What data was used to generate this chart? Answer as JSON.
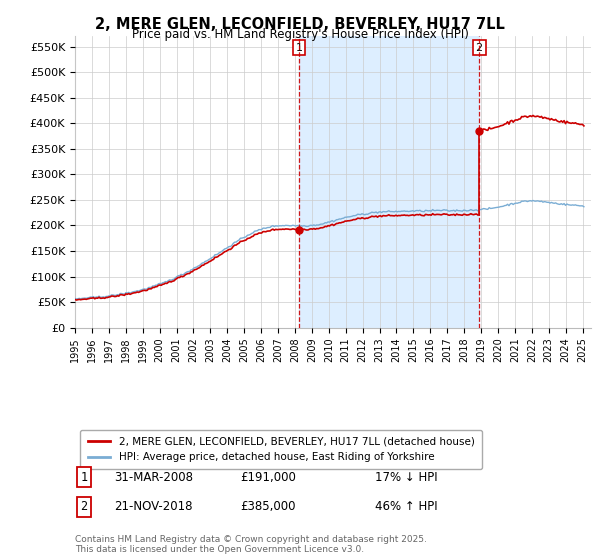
{
  "title": "2, MERE GLEN, LECONFIELD, BEVERLEY, HU17 7LL",
  "subtitle": "Price paid vs. HM Land Registry's House Price Index (HPI)",
  "ylabel_ticks": [
    "£0",
    "£50K",
    "£100K",
    "£150K",
    "£200K",
    "£250K",
    "£300K",
    "£350K",
    "£400K",
    "£450K",
    "£500K",
    "£550K"
  ],
  "ytick_values": [
    0,
    50000,
    100000,
    150000,
    200000,
    250000,
    300000,
    350000,
    400000,
    450000,
    500000,
    550000
  ],
  "ylim": [
    0,
    570000
  ],
  "t1_year": 2008.25,
  "t2_year": 2018.89,
  "t1_price": 191000,
  "t2_price": 385000,
  "hpi_line_color": "#7aadd4",
  "property_line_color": "#cc0000",
  "vline_color": "#cc0000",
  "shade_color": "#ddeeff",
  "background_color": "#ffffff",
  "grid_color": "#cccccc",
  "legend_entry1": "2, MERE GLEN, LECONFIELD, BEVERLEY, HU17 7LL (detached house)",
  "legend_entry2": "HPI: Average price, detached house, East Riding of Yorkshire",
  "note1_box_label": "1",
  "note2_box_label": "2",
  "note1_date": "31-MAR-2008",
  "note1_price": "£191,000",
  "note1_hpi": "17% ↓ HPI",
  "note2_date": "21-NOV-2018",
  "note2_price": "£385,000",
  "note2_hpi": "46% ↑ HPI",
  "footer": "Contains HM Land Registry data © Crown copyright and database right 2025.\nThis data is licensed under the Open Government Licence v3.0."
}
